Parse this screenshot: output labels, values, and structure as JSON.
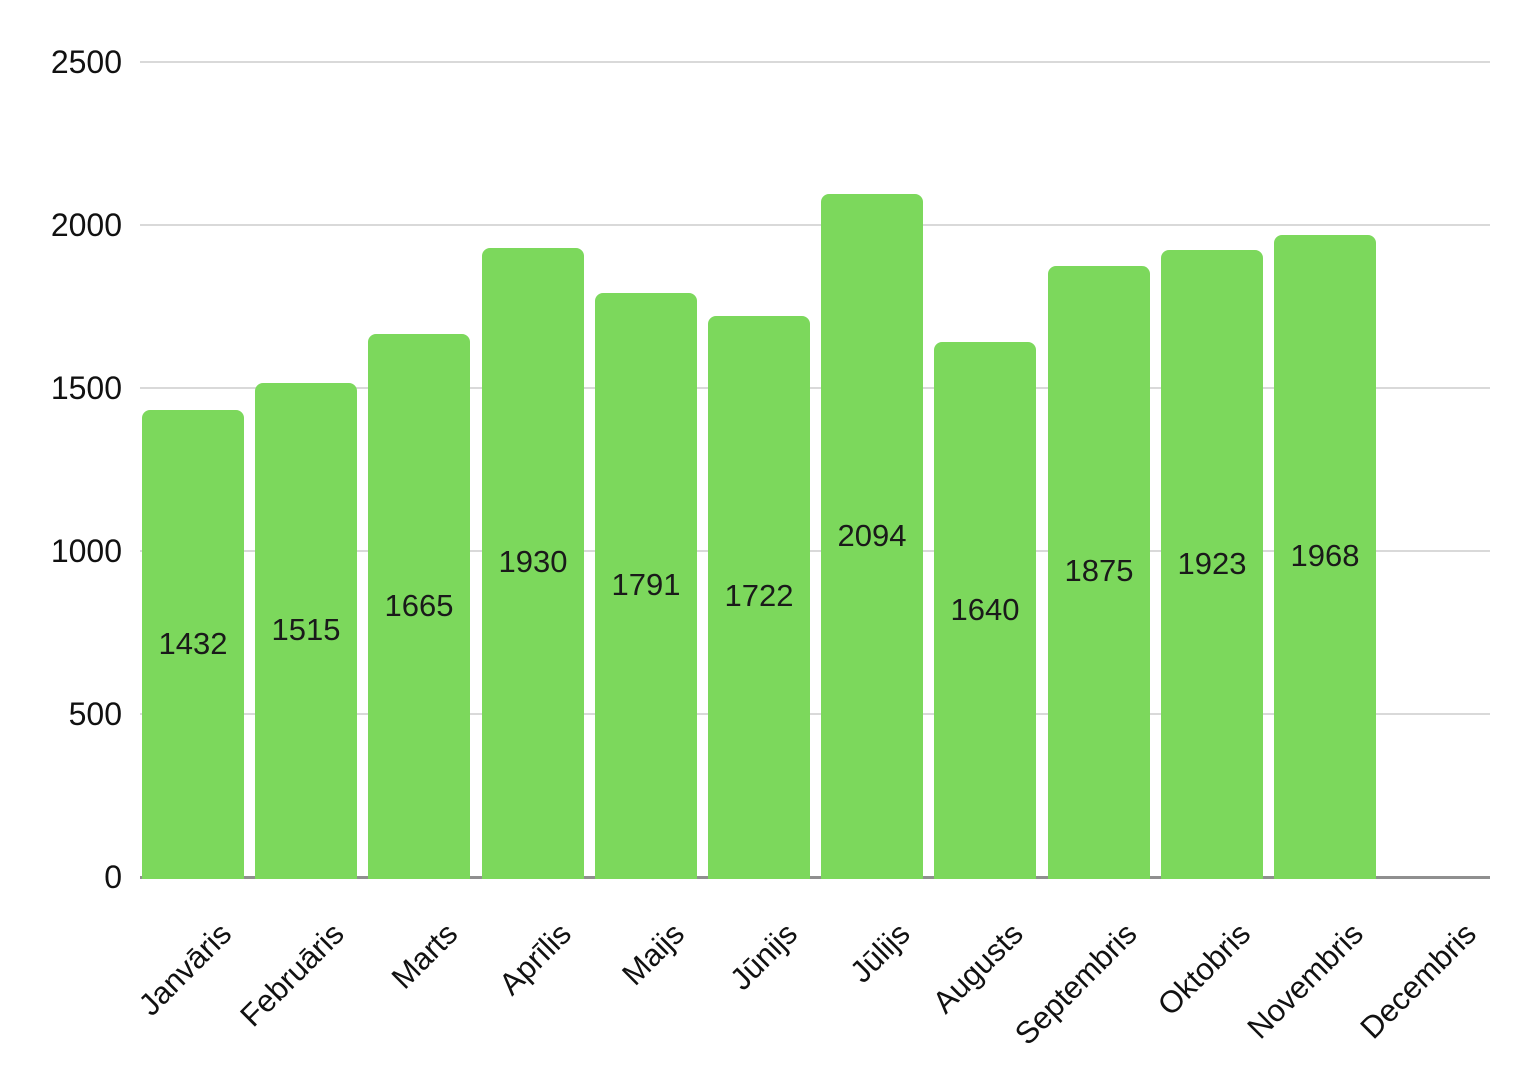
{
  "chart_data": {
    "type": "bar",
    "title": "",
    "xlabel": "",
    "ylabel": "",
    "categories": [
      "Janvāris",
      "Februāris",
      "Marts",
      "Aprīlis",
      "Maijs",
      "Jūnijs",
      "Jūlijs",
      "Augusts",
      "Septembris",
      "Oktobris",
      "Novembris",
      "Decembris"
    ],
    "values": [
      1432,
      1515,
      1665,
      1930,
      1791,
      1722,
      2094,
      1640,
      1875,
      1923,
      1968,
      null
    ],
    "data_labels": [
      "1432",
      "1515",
      "1665",
      "1930",
      "1791",
      "1722",
      "2094",
      "1640",
      "1875",
      "1923",
      "1968",
      ""
    ],
    "ylim": [
      0,
      2500
    ],
    "yticks": [
      0,
      500,
      1000,
      1500,
      2000,
      2500
    ],
    "ytick_labels": [
      "0",
      "500",
      "1000",
      "1500",
      "2000",
      "2500"
    ],
    "grid": "horizontal",
    "legend": "none",
    "x_label_rotation_deg": -45,
    "colors": {
      "bar": "#7cd85c",
      "gridline": "#d9d9d9",
      "axis_line": "#8f8f8f",
      "text": "#111111",
      "data_label_text": "#1a1a1a",
      "background": "#ffffff"
    }
  }
}
